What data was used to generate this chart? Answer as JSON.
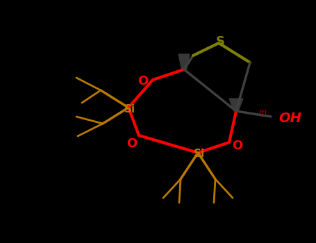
{
  "background_color": "#000000",
  "si_color": "#b87800",
  "o_color": "#ff0000",
  "s_color": "#808000",
  "oh_color": "#ff0000",
  "ring_bond_color": "#ff0000",
  "c_bond_color": "#404040",
  "si_bond_color": "#b87800",
  "figsize": [
    4.55,
    3.5
  ],
  "dpi": 100,
  "si1_label": "Si",
  "si2_label": "Si",
  "s_label": "S",
  "oh_label": "OH",
  "o_label": "O"
}
